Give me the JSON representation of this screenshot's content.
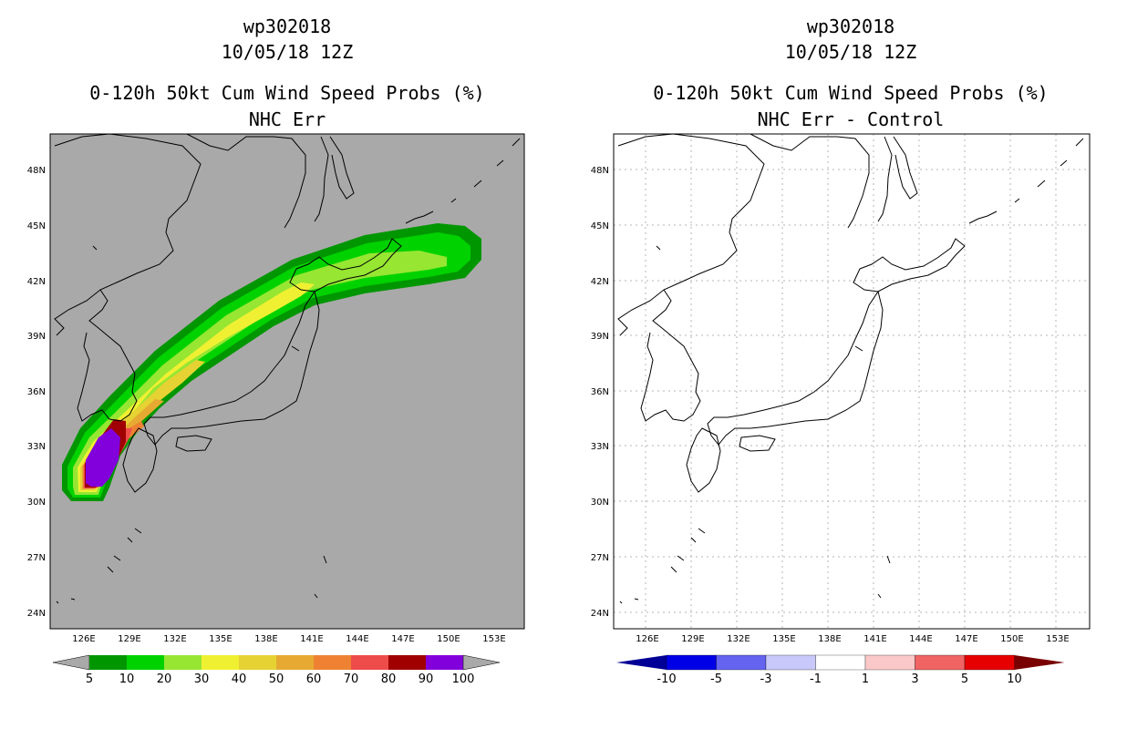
{
  "panels": [
    {
      "id": "left",
      "title_line1": "wp302018",
      "title_line2": "10/05/18 12Z",
      "title_line3": "0-120h 50kt Cum Wind Speed Probs (%)",
      "title_line4": "NHC Err",
      "background_color": "#a9a9a9",
      "colorbar": {
        "labels": [
          "5",
          "10",
          "20",
          "30",
          "40",
          "50",
          "60",
          "70",
          "80",
          "90",
          "100"
        ],
        "colors": [
          "#009600",
          "#00d200",
          "#96e632",
          "#f0f032",
          "#e6d232",
          "#e6aa32",
          "#ee8232",
          "#ee4b4b",
          "#a00000",
          "#8200dc"
        ],
        "end_color": "#a9a9a9"
      }
    },
    {
      "id": "right",
      "title_line1": "wp302018",
      "title_line2": "10/05/18 12Z",
      "title_line3": "0-120h 50kt Cum Wind Speed Probs (%)",
      "title_line4": "NHC Err - Control",
      "background_color": "#ffffff",
      "colorbar": {
        "labels": [
          "-10",
          "-5",
          "-3",
          "-1",
          "1",
          "3",
          "5",
          "10"
        ],
        "colors": [
          "#0000e6",
          "#6464f0",
          "#c8c8fa",
          "#ffffff",
          "#fac8c8",
          "#f06464",
          "#e60000"
        ],
        "left_end_color": "#000096",
        "right_end_color": "#780000"
      }
    }
  ],
  "axes": {
    "lon_labels": [
      "126E",
      "129E",
      "132E",
      "135E",
      "138E",
      "141E",
      "144E",
      "147E",
      "150E",
      "153E"
    ],
    "lat_labels": [
      "24N",
      "27N",
      "30N",
      "33N",
      "36N",
      "39N",
      "42N",
      "45N",
      "48N"
    ]
  }
}
